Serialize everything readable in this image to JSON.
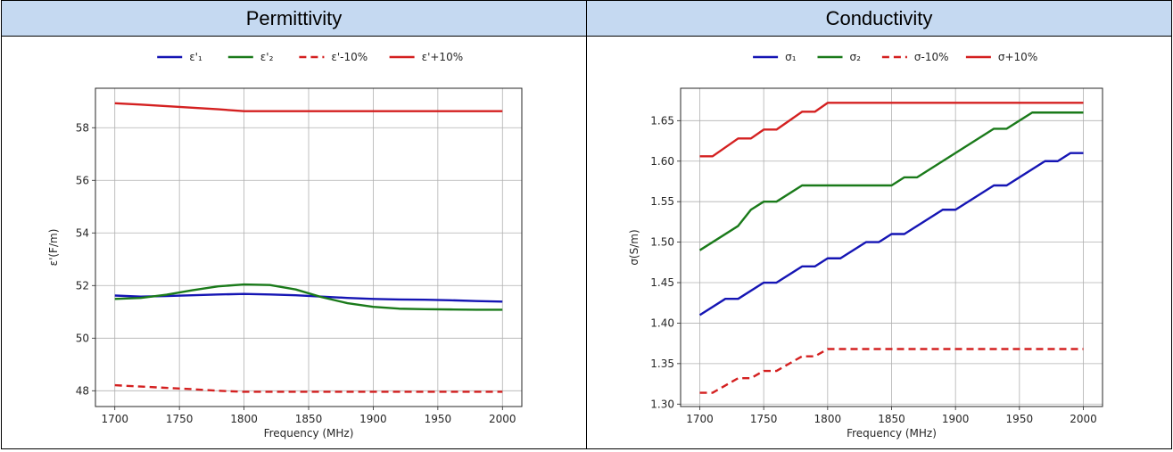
{
  "panels": [
    {
      "title": "Permittivity"
    },
    {
      "title": "Conductivity"
    }
  ],
  "chart_data": [
    {
      "type": "line",
      "title": "Permittivity",
      "xlabel": "Frequency (MHz)",
      "ylabel": "ε'(F/m)",
      "xlim": [
        1685,
        2015
      ],
      "ylim": [
        47.4,
        59.5
      ],
      "xticks": [
        1700,
        1750,
        1800,
        1850,
        1900,
        1950,
        2000
      ],
      "yticks": [
        48,
        50,
        52,
        54,
        56,
        58
      ],
      "ytick_decimals": 0,
      "grid": true,
      "legend_position": "top-center",
      "series": [
        {
          "name": "ε'₁",
          "color": "#1515b4",
          "dashed": false,
          "x": [
            1700,
            1720,
            1740,
            1760,
            1780,
            1800,
            1820,
            1840,
            1860,
            1880,
            1900,
            1920,
            1940,
            1960,
            1980,
            2000
          ],
          "y": [
            51.62,
            51.58,
            51.6,
            51.63,
            51.66,
            51.68,
            51.66,
            51.63,
            51.58,
            51.53,
            51.49,
            51.47,
            51.46,
            51.44,
            51.41,
            51.39
          ]
        },
        {
          "name": "ε'₂",
          "color": "#1a7a1a",
          "dashed": false,
          "x": [
            1700,
            1720,
            1740,
            1760,
            1780,
            1800,
            1820,
            1840,
            1860,
            1880,
            1900,
            1920,
            1940,
            1960,
            1980,
            2000
          ],
          "y": [
            51.49,
            51.53,
            51.65,
            51.82,
            51.97,
            52.04,
            52.02,
            51.85,
            51.56,
            51.33,
            51.19,
            51.12,
            51.1,
            51.09,
            51.08,
            51.08
          ]
        },
        {
          "name": "ε'-10%",
          "color": "#d42020",
          "dashed": true,
          "x": [
            1700,
            1720,
            1740,
            1760,
            1780,
            1800,
            1850,
            1900,
            1950,
            2000
          ],
          "y": [
            48.21,
            48.16,
            48.11,
            48.06,
            48.0,
            47.96,
            47.96,
            47.96,
            47.96,
            47.96
          ]
        },
        {
          "name": "ε'+10%",
          "color": "#d42020",
          "dashed": false,
          "x": [
            1700,
            1720,
            1740,
            1760,
            1780,
            1800,
            1850,
            1900,
            1950,
            2000
          ],
          "y": [
            58.93,
            58.88,
            58.82,
            58.76,
            58.7,
            58.63,
            58.63,
            58.63,
            58.63,
            58.63
          ]
        }
      ]
    },
    {
      "type": "line",
      "title": "Conductivity",
      "xlabel": "Frequency (MHz)",
      "ylabel": "σ(S/m)",
      "xlim": [
        1685,
        2015
      ],
      "ylim": [
        1.297,
        1.69
      ],
      "xticks": [
        1700,
        1750,
        1800,
        1850,
        1900,
        1950,
        2000
      ],
      "yticks": [
        1.3,
        1.35,
        1.4,
        1.45,
        1.5,
        1.55,
        1.6,
        1.65
      ],
      "ytick_decimals": 2,
      "grid": true,
      "legend_position": "top-center",
      "series": [
        {
          "name": "σ₁",
          "color": "#1515b4",
          "dashed": false,
          "x": [
            1700,
            1720,
            1730,
            1750,
            1760,
            1780,
            1790,
            1800,
            1810,
            1830,
            1840,
            1850,
            1860,
            1890,
            1900,
            1930,
            1940,
            1970,
            1980,
            1990,
            2000
          ],
          "y": [
            1.41,
            1.43,
            1.43,
            1.45,
            1.45,
            1.47,
            1.47,
            1.48,
            1.48,
            1.5,
            1.5,
            1.51,
            1.51,
            1.54,
            1.54,
            1.57,
            1.57,
            1.6,
            1.6,
            1.61,
            1.61
          ]
        },
        {
          "name": "σ₂",
          "color": "#1a7a1a",
          "dashed": false,
          "x": [
            1700,
            1730,
            1740,
            1750,
            1760,
            1780,
            1850,
            1860,
            1870,
            1930,
            1940,
            1960,
            2000
          ],
          "y": [
            1.49,
            1.52,
            1.54,
            1.55,
            1.55,
            1.57,
            1.57,
            1.58,
            1.58,
            1.64,
            1.64,
            1.66,
            1.66
          ]
        },
        {
          "name": "σ-10%",
          "color": "#d42020",
          "dashed": true,
          "x": [
            1700,
            1710,
            1730,
            1740,
            1750,
            1760,
            1780,
            1790,
            1800,
            2000
          ],
          "y": [
            1.314,
            1.314,
            1.332,
            1.332,
            1.341,
            1.341,
            1.359,
            1.359,
            1.368,
            1.368
          ]
        },
        {
          "name": "σ+10%",
          "color": "#d42020",
          "dashed": false,
          "x": [
            1700,
            1710,
            1730,
            1740,
            1750,
            1760,
            1780,
            1790,
            1800,
            2000
          ],
          "y": [
            1.606,
            1.606,
            1.628,
            1.628,
            1.639,
            1.639,
            1.661,
            1.661,
            1.672,
            1.672
          ]
        }
      ]
    }
  ]
}
